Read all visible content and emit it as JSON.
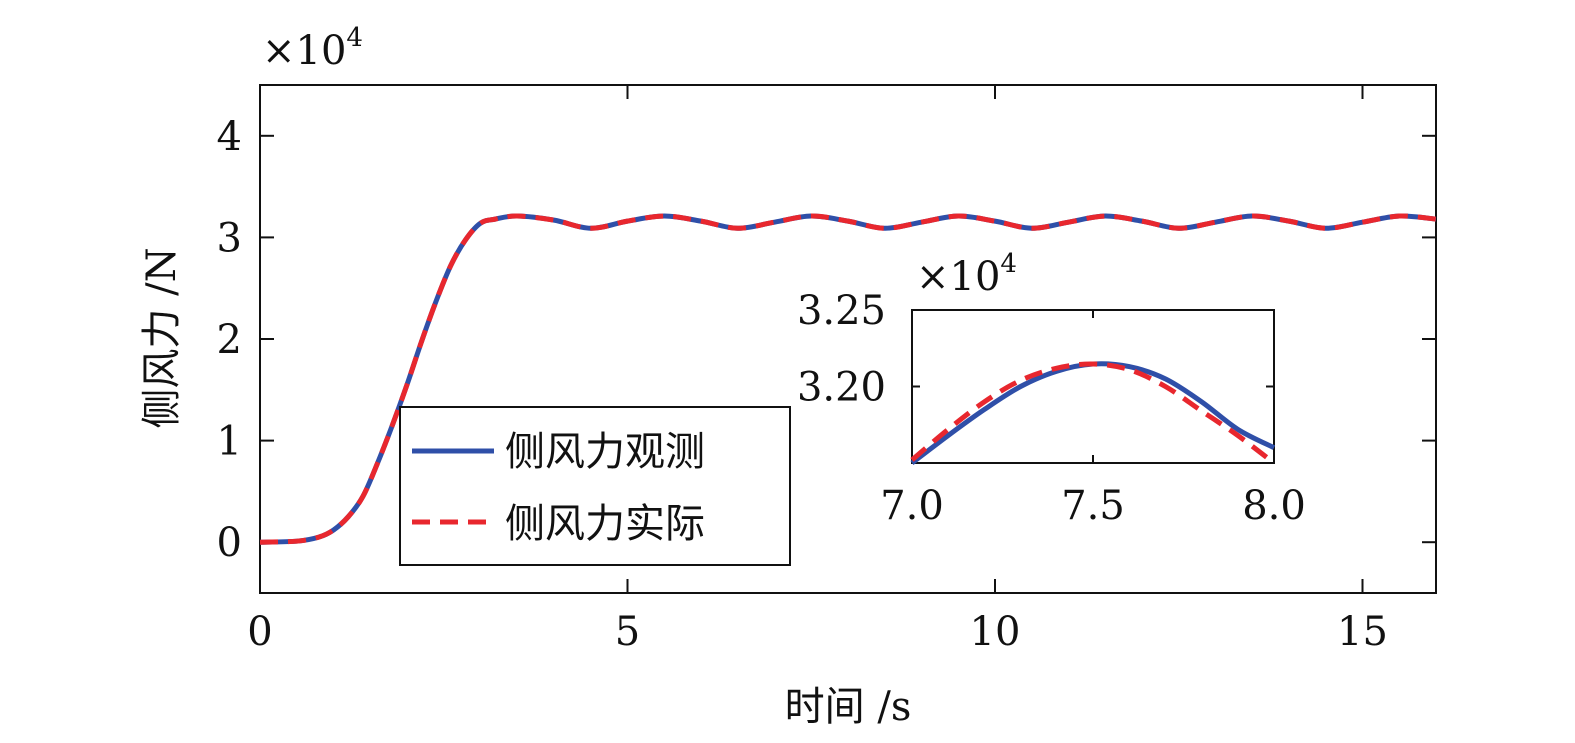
{
  "chart_data": [
    {
      "type": "line",
      "xlabel": "时间 /s",
      "ylabel": "侧风力 /N",
      "y_exponent_label": "×10",
      "y_exponent_power": "4",
      "xlim": [
        0,
        16
      ],
      "ylim": [
        -0.5,
        4.5
      ],
      "xticks": [
        0,
        5,
        10,
        15
      ],
      "xtick_labels": [
        "0",
        "5",
        "10",
        "15"
      ],
      "yticks": [
        0,
        1,
        2,
        3,
        4
      ],
      "ytick_labels": [
        "0",
        "1",
        "2",
        "3",
        "4"
      ],
      "y_scale": 10000,
      "grid": false,
      "legend_position": "lower-left",
      "series": [
        {
          "name": "侧风力观测",
          "color": "#2f4fa8",
          "style": "solid",
          "x": [
            0,
            0.5,
            0.8,
            1.0,
            1.2,
            1.4,
            1.6,
            1.8,
            2.0,
            2.2,
            2.4,
            2.6,
            2.8,
            3.0,
            3.2,
            3.5,
            4.0,
            4.5,
            5.0,
            5.5,
            6.0,
            6.5,
            7.0,
            7.5,
            8.0,
            8.5,
            9.0,
            9.5,
            10.0,
            10.5,
            11.0,
            11.5,
            12.0,
            12.5,
            13.0,
            13.5,
            14.0,
            14.5,
            15.0,
            15.5,
            16.0
          ],
          "y": [
            0.0,
            0.01,
            0.05,
            0.12,
            0.25,
            0.45,
            0.78,
            1.15,
            1.55,
            1.98,
            2.38,
            2.73,
            2.98,
            3.14,
            3.18,
            3.21,
            3.17,
            3.09,
            3.16,
            3.21,
            3.16,
            3.09,
            3.15,
            3.21,
            3.16,
            3.09,
            3.15,
            3.21,
            3.16,
            3.09,
            3.15,
            3.21,
            3.16,
            3.09,
            3.15,
            3.21,
            3.16,
            3.09,
            3.15,
            3.21,
            3.18
          ]
        },
        {
          "name": "侧风力实际",
          "color": "#e8272e",
          "style": "dashed",
          "x": [
            0,
            0.5,
            0.8,
            1.0,
            1.2,
            1.4,
            1.6,
            1.8,
            2.0,
            2.2,
            2.4,
            2.6,
            2.8,
            3.0,
            3.2,
            3.5,
            4.0,
            4.5,
            5.0,
            5.5,
            6.0,
            6.5,
            7.0,
            7.5,
            8.0,
            8.5,
            9.0,
            9.5,
            10.0,
            10.5,
            11.0,
            11.5,
            12.0,
            12.5,
            13.0,
            13.5,
            14.0,
            14.5,
            15.0,
            15.5,
            16.0
          ],
          "y": [
            0.0,
            0.01,
            0.05,
            0.12,
            0.25,
            0.45,
            0.78,
            1.15,
            1.55,
            1.98,
            2.38,
            2.73,
            2.98,
            3.14,
            3.18,
            3.21,
            3.17,
            3.09,
            3.16,
            3.21,
            3.16,
            3.09,
            3.15,
            3.21,
            3.16,
            3.09,
            3.15,
            3.21,
            3.16,
            3.09,
            3.15,
            3.21,
            3.16,
            3.09,
            3.15,
            3.21,
            3.16,
            3.09,
            3.15,
            3.21,
            3.18
          ]
        }
      ]
    },
    {
      "type": "line",
      "title": "",
      "y_exponent_label": "×10",
      "y_exponent_power": "4",
      "xlim": [
        7.0,
        8.0
      ],
      "ylim": [
        3.15,
        3.25
      ],
      "xticks": [
        7.0,
        7.5,
        8.0
      ],
      "xtick_labels": [
        "7.0",
        "7.5",
        "8.0"
      ],
      "yticks": [
        3.2,
        3.25
      ],
      "ytick_labels": [
        "3.20",
        "3.25"
      ],
      "grid": false,
      "series": [
        {
          "name": "侧风力观测",
          "color": "#2f4fa8",
          "style": "solid",
          "x": [
            7.0,
            7.1,
            7.2,
            7.3,
            7.4,
            7.5,
            7.6,
            7.7,
            7.8,
            7.9,
            8.0
          ],
          "y": [
            3.15,
            3.168,
            3.185,
            3.2,
            3.21,
            3.2147,
            3.213,
            3.205,
            3.19,
            3.172,
            3.16
          ]
        },
        {
          "name": "侧风力实际",
          "color": "#e8272e",
          "style": "dashed",
          "x": [
            7.0,
            7.1,
            7.2,
            7.3,
            7.4,
            7.5,
            7.6,
            7.7,
            7.8,
            7.9,
            8.0
          ],
          "y": [
            3.152,
            3.172,
            3.19,
            3.204,
            3.212,
            3.2147,
            3.211,
            3.2,
            3.184,
            3.168,
            3.15
          ]
        }
      ]
    }
  ]
}
